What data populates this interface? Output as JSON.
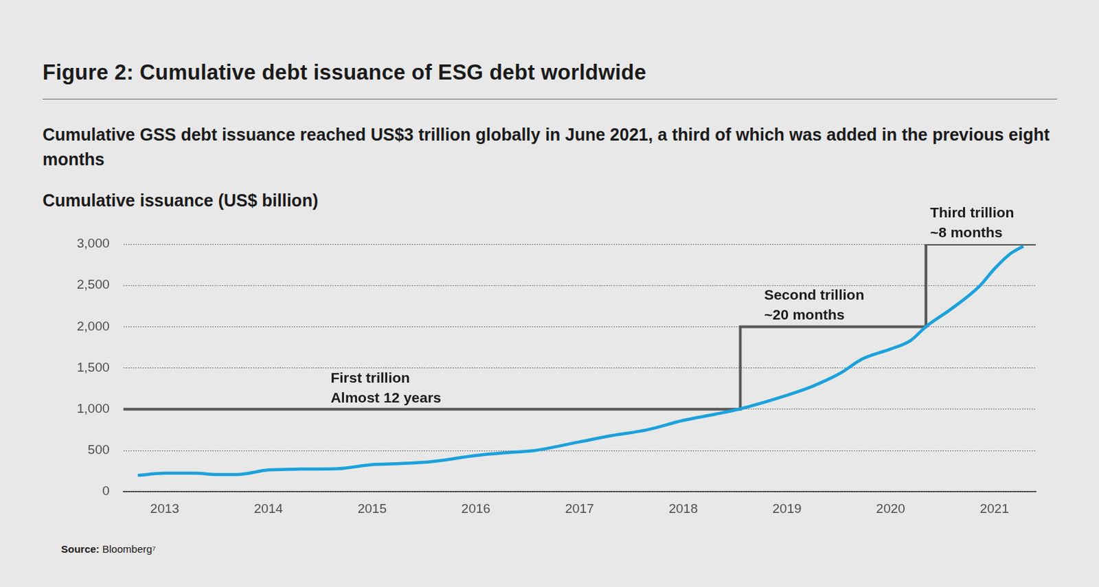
{
  "chart_data": {
    "type": "line",
    "title": "Figure 2: Cumulative debt issuance of ESG debt worldwide",
    "subtitle": "Cumulative GSS debt issuance reached US$3 trillion globally in June 2021, a third of which was added in the previous eight months",
    "y_label": "Cumulative issuance (US$ billion)",
    "source_label": "Source:",
    "source": "Bloomberg⁷",
    "xlim": [
      2012.6,
      2021.4
    ],
    "xticks": [
      2013,
      2014,
      2015,
      2016,
      2017,
      2018,
      2019,
      2020,
      2021
    ],
    "ylim": [
      0,
      3000
    ],
    "yticks": [
      0,
      500,
      {
        "value": 1000,
        "label": "1,000"
      },
      {
        "value": 1500,
        "label": "1,500"
      },
      {
        "value": 2000,
        "label": "2,000"
      },
      {
        "value": 2500,
        "label": "2,500"
      },
      {
        "value": 3000,
        "label": "3,000"
      }
    ],
    "grid": true,
    "series": [
      {
        "type": "line",
        "color": "#1ba1dc",
        "x": [
          2012.74,
          2013.0,
          2013.29,
          2013.5,
          2013.7,
          2014.0,
          2014.3,
          2014.67,
          2015.0,
          2015.22,
          2015.57,
          2016.0,
          2016.31,
          2016.57,
          2017.0,
          2017.31,
          2017.65,
          2018.0,
          2018.31,
          2018.55,
          2019.0,
          2019.25,
          2019.52,
          2019.72,
          2020.0,
          2020.19,
          2020.34,
          2020.59,
          2020.86,
          2021.0,
          2021.16,
          2021.28
        ],
        "values": [
          200,
          225,
          225,
          210,
          210,
          265,
          275,
          280,
          330,
          340,
          365,
          440,
          475,
          500,
          605,
          680,
          750,
          865,
          940,
          1005,
          1170,
          1280,
          1440,
          1605,
          1730,
          1830,
          2000,
          2220,
          2495,
          2700,
          2890,
          2975
        ]
      },
      {
        "type": "step",
        "color": "#595959",
        "x": [
          2012.6,
          2018.55,
          2020.34,
          2021.4
        ],
        "values": [
          1000,
          2000,
          3000,
          3000
        ]
      }
    ],
    "annotations": [
      {
        "text": [
          "First trillion",
          "Almost 12 years"
        ],
        "x": 2014.6,
        "y": 1000
      },
      {
        "text": [
          "Second trillion",
          "~20 months"
        ],
        "x": 2018.78,
        "y": 2000
      },
      {
        "text": [
          "Third trillion",
          "~8 months"
        ],
        "x": 2020.38,
        "y": 3000
      }
    ]
  }
}
